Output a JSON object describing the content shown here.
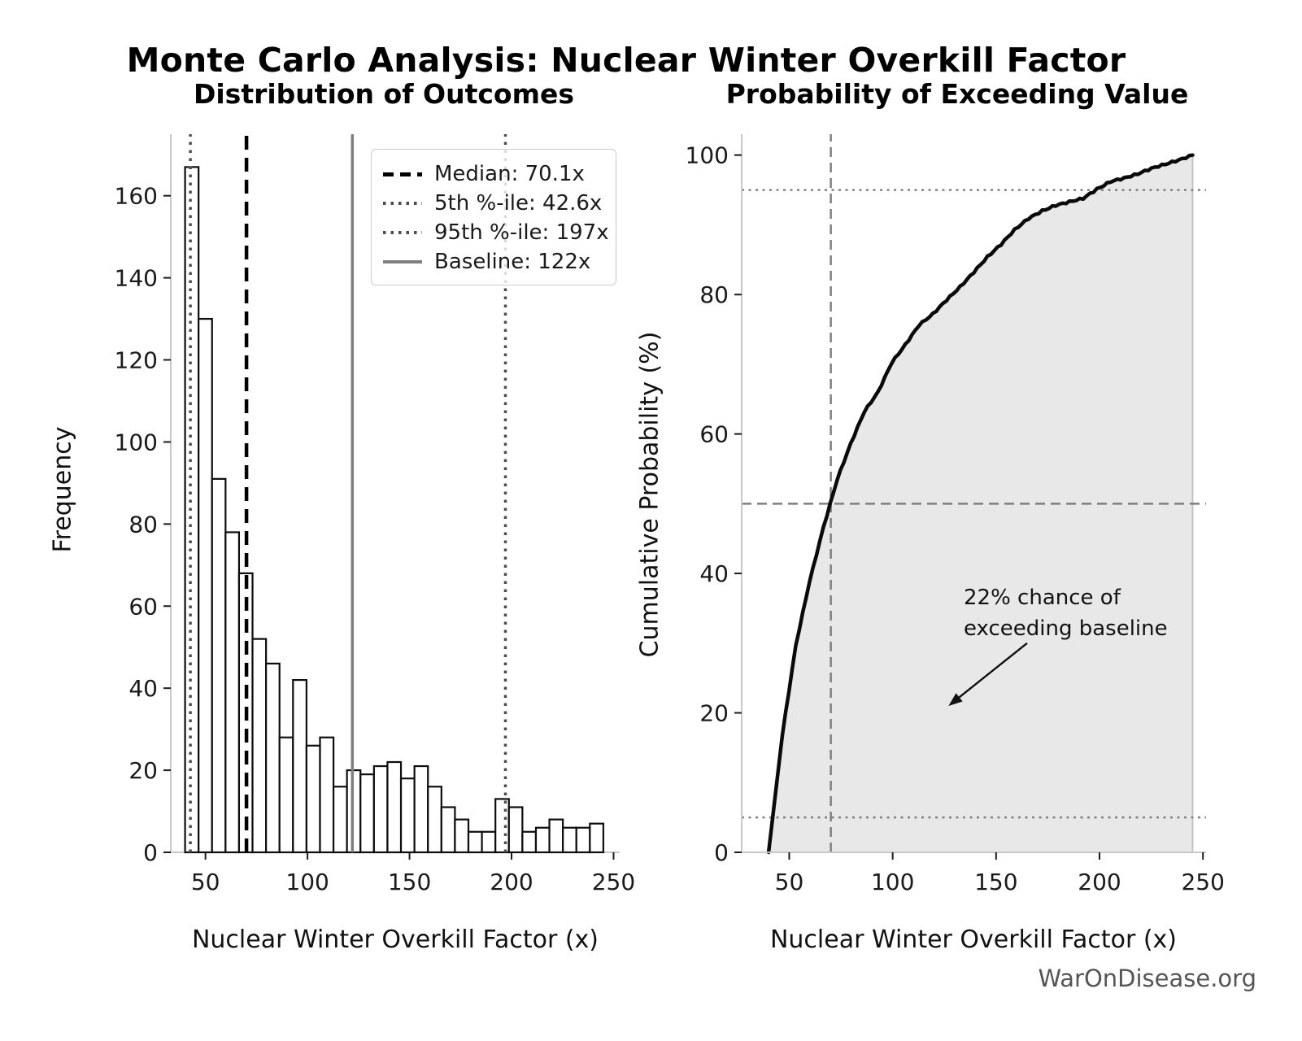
{
  "main": {
    "title": "Monte Carlo Analysis: Nuclear Winter Overkill Factor",
    "footer": "WarOnDisease.org"
  },
  "colors": {
    "bar_fill": "#ffffff",
    "bar_edge": "#0d0d0d",
    "median_line": "#000000",
    "percentile_line": "#4d4d4d",
    "baseline_line": "#7f7f7f",
    "cdf_line": "#0a0a0a",
    "cdf_fill": "#e8e8e8",
    "spine": "#c8c8c8",
    "tick": "#1a1a1a",
    "footer_text": "#555555"
  },
  "chart_data": [
    {
      "type": "bar",
      "subtype": "histogram",
      "title": "Distribution of Outcomes",
      "xlabel": "Nuclear Winter Overkill Factor (x)",
      "ylabel": "Frequency",
      "xlim": [
        33,
        253
      ],
      "ylim": [
        0,
        175
      ],
      "xticks": [
        50,
        100,
        150,
        200,
        250
      ],
      "yticks": [
        0,
        20,
        40,
        60,
        80,
        100,
        120,
        140,
        160
      ],
      "grid": false,
      "n_samples": 1000,
      "bin_start": 40,
      "bin_width": 6.6129,
      "counts": [
        167,
        130,
        91,
        78,
        68,
        52,
        46,
        28,
        42,
        26,
        28,
        16,
        20,
        19,
        21,
        22,
        18,
        21,
        16,
        11,
        8,
        5,
        5,
        13,
        11,
        5,
        6,
        8,
        6,
        6,
        7
      ],
      "ref_lines": [
        {
          "label": "Median: 70.1x",
          "value": 70.1,
          "style": "dashed",
          "color": "#000000"
        },
        {
          "label": "5th %-ile: 42.6x",
          "value": 42.6,
          "style": "dotted",
          "color": "#4d4d4d"
        },
        {
          "label": "95th %-ile: 197x",
          "value": 197,
          "style": "dotted",
          "color": "#4d4d4d"
        },
        {
          "label": "Baseline: 122x",
          "value": 122,
          "style": "solid",
          "color": "#7f7f7f"
        }
      ],
      "legend_position": "upper right"
    },
    {
      "type": "line",
      "subtype": "cdf",
      "title": "Probability of Exceeding Value",
      "xlabel": "Nuclear Winter Overkill Factor (x)",
      "ylabel": "Cumulative Probability (%)",
      "xlim": [
        27,
        251.5
      ],
      "ylim": [
        0,
        103
      ],
      "xticks": [
        50,
        100,
        150,
        200,
        250
      ],
      "yticks": [
        0,
        20,
        40,
        60,
        80,
        100
      ],
      "grid": false,
      "x": [
        40.0,
        46.6,
        53.2,
        59.8,
        66.5,
        73.1,
        79.7,
        86.3,
        92.9,
        99.5,
        106.1,
        112.7,
        119.4,
        126.0,
        132.6,
        139.2,
        145.8,
        152.4,
        159.0,
        165.6,
        172.3,
        178.9,
        185.5,
        192.1,
        198.7,
        205.3,
        211.9,
        218.5,
        225.2,
        231.8,
        238.4,
        245.0
      ],
      "y": [
        0,
        16.7,
        29.7,
        38.8,
        46.6,
        53.4,
        58.6,
        63.2,
        66.0,
        70.2,
        72.8,
        75.6,
        77.2,
        79.2,
        81.1,
        83.2,
        85.4,
        87.2,
        89.3,
        90.9,
        92.0,
        92.8,
        93.3,
        93.8,
        95.1,
        96.2,
        96.7,
        97.3,
        98.1,
        98.7,
        99.3,
        100.0
      ],
      "fill_under_curve": true,
      "ref_lines_h": [
        {
          "value": 50,
          "style": "dashed",
          "color": "#7f7f7f"
        },
        {
          "value": 95,
          "style": "dotted",
          "color": "#808080"
        },
        {
          "value": 5,
          "style": "dotted",
          "color": "#808080"
        }
      ],
      "ref_lines_v": [
        {
          "value": 70.1,
          "style": "dashed",
          "color": "#7f7f7f"
        }
      ],
      "annotation": {
        "text_line1": "22% chance of",
        "text_line2": "exceeding baseline",
        "arrow_from": [
          165,
          30
        ],
        "arrow_to": [
          127,
          21
        ]
      }
    }
  ]
}
